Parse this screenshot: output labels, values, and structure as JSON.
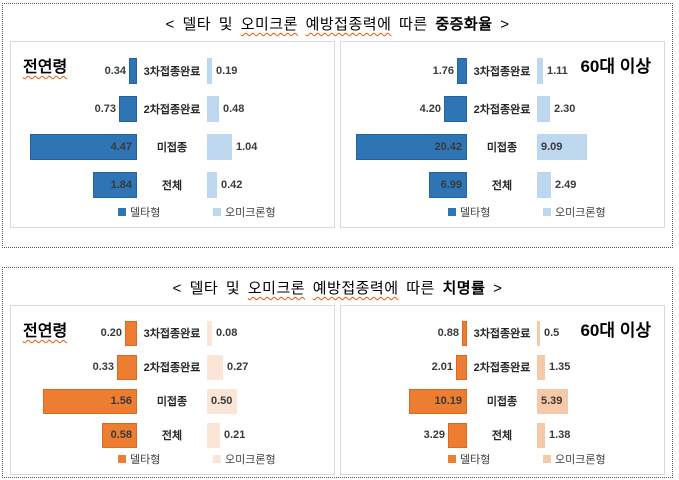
{
  "severity": {
    "title": {
      "p1": "< 델타 및",
      "p2": "오미크론",
      "p3": "예방접종력에",
      "p4": "따른",
      "p5": "중증화율",
      "p6": ">"
    }
  },
  "fatality": {
    "title": {
      "p1": "< 델타 및",
      "p2": "오미크론",
      "p3": "예방접종력에",
      "p4": "따른",
      "p5": "치명률",
      "p6": ">"
    }
  },
  "colors": {
    "delta_blue": "#2E75B6",
    "omicron_blue": "#BDD7EE",
    "delta_orange": "#ED7D31",
    "omicron_peach_light": "#FBE5D6",
    "omicron_peach": "#F6C9A8"
  },
  "chart_data": [
    {
      "type": "bar",
      "layout": "tornado",
      "chart_title": "델타 및 오미크론 예방접종력에 따른 중증화율",
      "group_label": "전연령",
      "categories": [
        "3차접종완료",
        "2차접종완료",
        "미접종",
        "전체"
      ],
      "axis_max": 5,
      "grid": false,
      "legend_position": "bottom",
      "series": [
        {
          "name": "델타형",
          "color": "#2E75B6",
          "values": [
            0.34,
            0.73,
            4.47,
            1.84
          ],
          "labels": [
            "0.34",
            "0.73",
            "4.47",
            "1.84"
          ]
        },
        {
          "name": "오미크론형",
          "color": "#BDD7EE",
          "values": [
            0.19,
            0.48,
            1.04,
            0.42
          ],
          "labels": [
            "0.19",
            "0.48",
            "1.04",
            "0.42"
          ]
        }
      ]
    },
    {
      "type": "bar",
      "layout": "tornado",
      "chart_title": "델타 및 오미크론 예방접종력에 따른 중증화율",
      "group_label": "60대 이상",
      "categories": [
        "3차접종완료",
        "2차접종완료",
        "미접종",
        "전체"
      ],
      "axis_max": 22,
      "grid": false,
      "legend_position": "bottom",
      "series": [
        {
          "name": "델타형",
          "color": "#2E75B6",
          "values": [
            1.76,
            4.2,
            20.42,
            6.99
          ],
          "labels": [
            "1.76",
            "4.20",
            "20.42",
            "6.99"
          ]
        },
        {
          "name": "오미크론형",
          "color": "#BDD7EE",
          "values": [
            1.11,
            2.3,
            9.09,
            2.49
          ],
          "labels": [
            "1.11",
            "2.30",
            "9.09",
            "2.49"
          ]
        }
      ]
    },
    {
      "type": "bar",
      "layout": "tornado",
      "chart_title": "델타 및 오미크론 예방접종력에 따른 치명률",
      "group_label": "전연령",
      "categories": [
        "3차접종완료",
        "2차접종완료",
        "미접종",
        "전체"
      ],
      "axis_max": 2,
      "grid": false,
      "legend_position": "bottom",
      "series": [
        {
          "name": "델타형",
          "color": "#ED7D31",
          "values": [
            0.2,
            0.33,
            1.56,
            0.58
          ],
          "labels": [
            "0.20",
            "0.33",
            "1.56",
            "0.58"
          ]
        },
        {
          "name": "오미크론형",
          "color": "#FBE5D6",
          "values": [
            0.08,
            0.27,
            0.5,
            0.21
          ],
          "labels": [
            "0.08",
            "0.27",
            "0.50",
            "0.21"
          ]
        }
      ]
    },
    {
      "type": "bar",
      "layout": "tornado",
      "chart_title": "델타 및 오미크론 예방접종력에 따른 치명률",
      "group_label": "60대 이상",
      "categories": [
        "3차접종완료",
        "2차접종완료",
        "미접종",
        "전체"
      ],
      "axis_max": 21,
      "grid": false,
      "legend_position": "bottom",
      "series": [
        {
          "name": "델타형",
          "color": "#ED7D31",
          "values": [
            0.88,
            2.01,
            10.19,
            3.29
          ],
          "labels": [
            "0.88",
            "2.01",
            "10.19",
            "3.29"
          ]
        },
        {
          "name": "오미크론형",
          "color": "#F6C9A8",
          "values": [
            0.5,
            1.35,
            5.39,
            1.38
          ],
          "labels": [
            "0.5",
            "1.35",
            "5.39",
            "1.38"
          ]
        }
      ]
    }
  ]
}
